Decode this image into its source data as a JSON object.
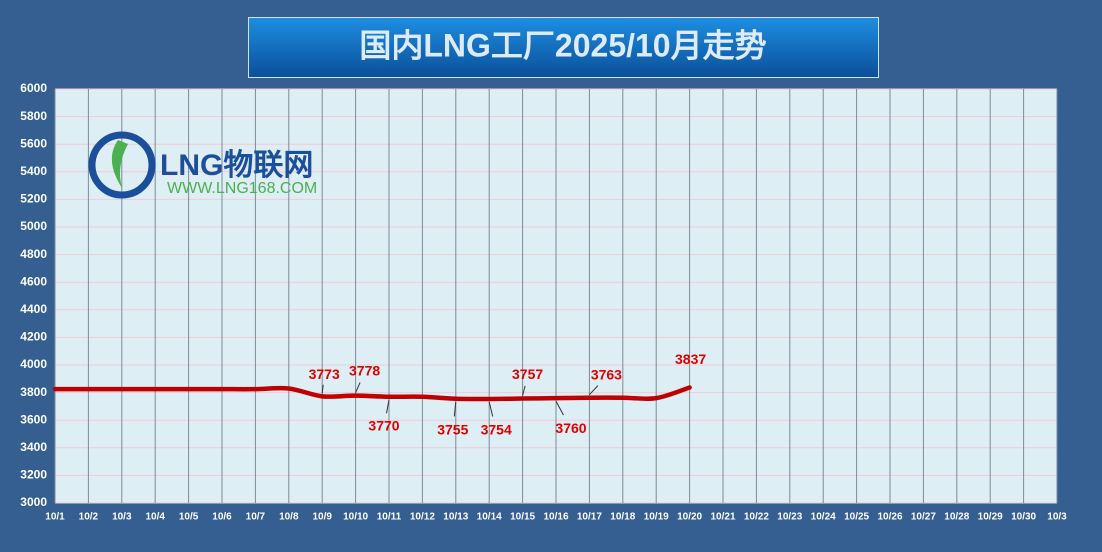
{
  "chart_data": {
    "type": "line",
    "title": "国内LNG工厂2025/10月走势",
    "watermark": [
      "LNG物联网",
      "WWW.LNG168.COM"
    ],
    "categories": [
      "10/1",
      "10/2",
      "10/3",
      "10/4",
      "10/5",
      "10/6",
      "10/7",
      "10/8",
      "10/9",
      "10/10",
      "10/11",
      "10/12",
      "10/13",
      "10/14",
      "10/15",
      "10/16",
      "10/17",
      "10/18",
      "10/19",
      "10/20",
      "10/21",
      "10/22",
      "10/23",
      "10/24",
      "10/25",
      "10/26",
      "10/27",
      "10/28",
      "10/29",
      "10/30",
      "10/3"
    ],
    "series": [
      {
        "color": "#c00000",
        "values": [
          3825,
          3825,
          3825,
          3825,
          3825,
          3825,
          3825,
          3830,
          3773,
          3778,
          3770,
          3770,
          3755,
          3754,
          3757,
          3760,
          3763,
          3763,
          3760,
          3837,
          null,
          null,
          null,
          null,
          null,
          null,
          null,
          null,
          null,
          null,
          null
        ],
        "value_labels": [
          null,
          null,
          null,
          null,
          null,
          null,
          null,
          null,
          "3773",
          "3778",
          "3770",
          null,
          "3755",
          "3754",
          "3757",
          "3760",
          "3763",
          null,
          null,
          "3837",
          null,
          null,
          null,
          null,
          null,
          null,
          null,
          null,
          null,
          null,
          null
        ]
      }
    ],
    "ylim": [
      3000,
      6000
    ],
    "yticks": [
      3000,
      3200,
      3400,
      3600,
      3800,
      4000,
      4200,
      4400,
      4600,
      4800,
      5000,
      5200,
      5400,
      5600,
      5800,
      6000
    ],
    "grid": true
  }
}
